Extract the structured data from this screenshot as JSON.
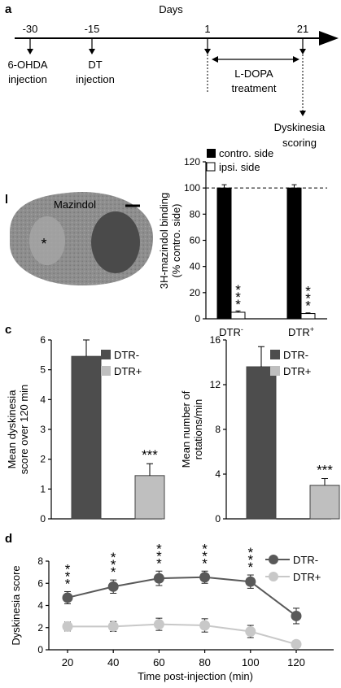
{
  "panel_a": {
    "letter": "a",
    "title": "Days",
    "ticks": [
      {
        "day": "-30",
        "label_lines": [
          "6-OHDA",
          "injection"
        ]
      },
      {
        "day": "-15",
        "label_lines": [
          "DT",
          "injection"
        ]
      },
      {
        "day": "1",
        "label_lines": []
      },
      {
        "day": "21",
        "label_lines": []
      }
    ],
    "treatment_label_lines": [
      "L-DOPA",
      "treatment"
    ],
    "scoring_label_lines": [
      "Dyskinesia",
      "scoring"
    ]
  },
  "panel_b": {
    "letter": "b",
    "image": {
      "label": "Mazindol",
      "marker": "*"
    }
  },
  "panel_c": {
    "letter": "c"
  },
  "panel_d": {
    "letter": "d"
  },
  "colors": {
    "black": "#000000",
    "dark_gray": "#4d4d4d",
    "light_gray": "#bfbfbf",
    "line_dark": "#595959",
    "line_light": "#c8c8c8"
  },
  "chart_data": [
    {
      "id": "b",
      "type": "bar",
      "ylabel_lines": [
        "3H-mazindol binding",
        "(% contro. side)"
      ],
      "ylim": [
        0,
        120
      ],
      "yticks": [
        0,
        20,
        40,
        60,
        80,
        100,
        120
      ],
      "reference_line": 100,
      "categories": [
        {
          "base": "DTR",
          "sup": "-"
        },
        {
          "base": "DTR",
          "sup": "+"
        }
      ],
      "series": [
        {
          "name": "contro. side",
          "values": [
            100,
            100
          ],
          "errors": [
            2.5,
            2.5
          ]
        },
        {
          "name": "ipsi. side",
          "values": [
            5,
            4
          ],
          "errors": [
            1,
            0.5
          ]
        }
      ],
      "significance": [
        "***",
        "***"
      ],
      "legend": "top-right"
    },
    {
      "id": "c-left",
      "type": "bar",
      "ylabel_lines": [
        "Mean dyskinesia",
        "score over 120 min"
      ],
      "ylim": [
        0,
        6
      ],
      "yticks": [
        0,
        1,
        2,
        3,
        4,
        5,
        6
      ],
      "series": [
        {
          "name": "DTR-",
          "values": [
            5.45
          ],
          "errors": [
            0.55
          ]
        },
        {
          "name": "DTR+",
          "values": [
            1.45
          ],
          "errors": [
            0.4
          ]
        }
      ],
      "significance": "***",
      "legend": "top-right"
    },
    {
      "id": "c-right",
      "type": "bar",
      "ylabel_lines": [
        "Mean number of",
        "rotations/min"
      ],
      "ylim": [
        0,
        16
      ],
      "yticks": [
        0,
        4,
        8,
        12,
        16
      ],
      "series": [
        {
          "name": "DTR-",
          "values": [
            13.6
          ],
          "errors": [
            1.8
          ]
        },
        {
          "name": "DTR+",
          "values": [
            3.0
          ],
          "errors": [
            0.6
          ]
        }
      ],
      "significance": "***",
      "legend": "top-right"
    },
    {
      "id": "d",
      "type": "line",
      "xlabel": "Time post-injection (min)",
      "ylabel": "Dyskinesia score",
      "x": [
        20,
        40,
        60,
        80,
        100,
        120
      ],
      "ylim": [
        0,
        8
      ],
      "yticks": [
        0,
        2,
        4,
        6,
        8
      ],
      "series": [
        {
          "name": "DTR-",
          "values": [
            4.7,
            5.7,
            6.45,
            6.55,
            6.15,
            3.05
          ],
          "errors": [
            0.55,
            0.6,
            0.65,
            0.55,
            0.6,
            0.7
          ]
        },
        {
          "name": "DTR+",
          "values": [
            2.1,
            2.1,
            2.3,
            2.2,
            1.65,
            0.5
          ],
          "errors": [
            0.4,
            0.45,
            0.55,
            0.6,
            0.55,
            0.1
          ]
        }
      ],
      "significance": [
        "***",
        "***",
        "***",
        "***",
        "***",
        ""
      ],
      "legend": "top-right"
    }
  ]
}
